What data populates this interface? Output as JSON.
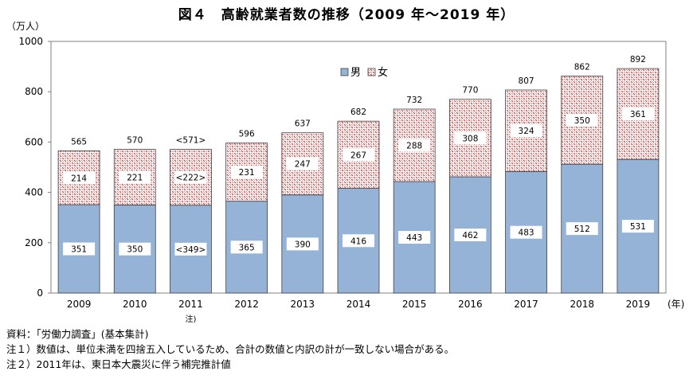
{
  "title": "図４　高齢就業者数の推移（2009 年～2019 年）",
  "unit_label": "（万人）",
  "x_unit_label": "(年)",
  "notes": [
    "資料：「労働力調査」(基本集計)",
    "注１）数値は、単位未満を四捨五入しているため、合計の数値と内訳の計が一致しない場合がある。",
    "注２）2011年は、東日本大震災に伴う補完推計値"
  ],
  "colors": {
    "male": "#95b3d7",
    "female_pattern": "#c0504d"
  },
  "chart_data": {
    "type": "bar",
    "stacked": true,
    "categories": [
      "2009",
      "2010",
      "2011",
      "2012",
      "2013",
      "2014",
      "2015",
      "2016",
      "2017",
      "2018",
      "2019"
    ],
    "category_sublabels": [
      "",
      "",
      "注)",
      "",
      "",
      "",
      "",
      "",
      "",
      "",
      ""
    ],
    "series": [
      {
        "name": "男",
        "values": [
          351,
          350,
          349,
          365,
          390,
          416,
          443,
          462,
          483,
          512,
          531
        ],
        "labels": [
          "351",
          "350",
          "<349>",
          "365",
          "390",
          "416",
          "443",
          "462",
          "483",
          "512",
          "531"
        ]
      },
      {
        "name": "女",
        "values": [
          214,
          221,
          222,
          231,
          247,
          267,
          288,
          308,
          324,
          350,
          361
        ],
        "labels": [
          "214",
          "221",
          "<222>",
          "231",
          "247",
          "267",
          "288",
          "308",
          "324",
          "350",
          "361"
        ]
      }
    ],
    "totals": [
      565,
      570,
      571,
      596,
      637,
      682,
      732,
      770,
      807,
      862,
      892
    ],
    "total_labels": [
      "565",
      "570",
      "<571>",
      "596",
      "637",
      "682",
      "732",
      "770",
      "807",
      "862",
      "892"
    ],
    "ylim": [
      0,
      1000
    ],
    "yticks": [
      0,
      200,
      400,
      600,
      800,
      1000
    ],
    "legend_position": "top-center",
    "grid": false
  }
}
